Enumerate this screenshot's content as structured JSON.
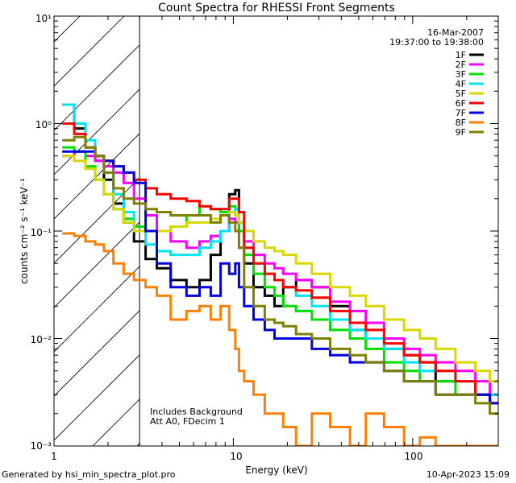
{
  "chart_data": {
    "type": "line",
    "title": "Count Spectra for RHESSI Front Segments",
    "xlabel": "Energy (keV)",
    "ylabel": "counts cm⁻² s⁻¹ keV⁻¹",
    "xscale": "log",
    "yscale": "log",
    "xlim": [
      1,
      300
    ],
    "ylim": [
      0.001,
      10
    ],
    "x_tick_labels": [
      "1",
      "10",
      "100"
    ],
    "y_tick_labels": [
      "10⁻³",
      "10⁻²",
      "10⁻¹",
      "10⁰",
      "10¹"
    ],
    "date": "16-Mar-2007",
    "time_range": "19:37:00 to 19:38:00",
    "hatched_below_keV": 3,
    "annotations": [
      "Includes Background",
      "Att A0, FDecim 1"
    ],
    "series": [
      {
        "name": "1F",
        "color": "#000000",
        "x": [
          1.2,
          1.4,
          1.6,
          1.8,
          2.0,
          2.3,
          2.6,
          3.0,
          3.5,
          4.0,
          5.0,
          6.0,
          7.0,
          8.0,
          9.0,
          10.0,
          10.5,
          11.0,
          12.0,
          14.0,
          16.0,
          18.0,
          20.0,
          25.0,
          30.0,
          40.0,
          50.0,
          60.0,
          80.0,
          100.0,
          120.0,
          150.0,
          200.0,
          250.0,
          290.0
        ],
        "y": [
          1.5,
          0.9,
          0.6,
          0.45,
          0.3,
          0.18,
          0.12,
          0.08,
          0.055,
          0.045,
          0.035,
          0.03,
          0.035,
          0.06,
          0.1,
          0.22,
          0.24,
          0.12,
          0.05,
          0.03,
          0.025,
          0.02,
          0.03,
          0.035,
          0.03,
          0.02,
          0.012,
          0.01,
          0.008,
          0.007,
          0.006,
          0.004,
          0.004,
          0.003,
          0.0025
        ]
      },
      {
        "name": "2F",
        "color": "#ff00ff",
        "x": [
          1.2,
          1.4,
          1.6,
          1.8,
          2.0,
          2.3,
          2.6,
          3.0,
          3.5,
          4.0,
          5.0,
          6.0,
          7.0,
          8.0,
          9.0,
          10.0,
          10.5,
          11.0,
          12.0,
          14.0,
          16.0,
          18.0,
          20.0,
          25.0,
          30.0,
          40.0,
          50.0,
          60.0,
          80.0,
          100.0,
          120.0,
          150.0,
          200.0,
          250.0,
          290.0
        ],
        "y": [
          0.5,
          0.55,
          0.5,
          0.45,
          0.4,
          0.35,
          0.28,
          0.2,
          0.14,
          0.1,
          0.08,
          0.07,
          0.08,
          0.09,
          0.1,
          0.13,
          0.12,
          0.1,
          0.08,
          0.06,
          0.05,
          0.045,
          0.04,
          0.035,
          0.03,
          0.022,
          0.018,
          0.014,
          0.01,
          0.008,
          0.007,
          0.006,
          0.005,
          0.004,
          0.003
        ]
      },
      {
        "name": "3F",
        "color": "#00e000",
        "x": [
          1.2,
          1.4,
          1.6,
          1.8,
          2.0,
          2.3,
          2.6,
          3.0,
          3.5,
          4.0,
          5.0,
          6.0,
          7.0,
          8.0,
          9.0,
          10.0,
          10.5,
          11.0,
          12.0,
          14.0,
          16.0,
          18.0,
          20.0,
          25.0,
          30.0,
          40.0,
          50.0,
          60.0,
          80.0,
          100.0,
          120.0,
          150.0,
          200.0,
          250.0,
          290.0
        ],
        "y": [
          0.6,
          0.55,
          0.4,
          0.3,
          0.22,
          0.16,
          0.13,
          0.11,
          0.1,
          0.1,
          0.11,
          0.14,
          0.17,
          0.16,
          0.15,
          0.17,
          0.14,
          0.1,
          0.06,
          0.04,
          0.03,
          0.025,
          0.02,
          0.018,
          0.015,
          0.012,
          0.01,
          0.008,
          0.006,
          0.005,
          0.004,
          0.004,
          0.003,
          0.003,
          0.0025
        ]
      },
      {
        "name": "4F",
        "color": "#00e5ee",
        "x": [
          1.2,
          1.4,
          1.6,
          1.8,
          2.0,
          2.3,
          2.6,
          3.0,
          3.5,
          4.0,
          5.0,
          6.0,
          7.0,
          8.0,
          9.0,
          10.0,
          10.5,
          11.0,
          12.0,
          14.0,
          16.0,
          18.0,
          20.0,
          25.0,
          30.0,
          40.0,
          50.0,
          60.0,
          80.0,
          100.0,
          120.0,
          150.0,
          200.0,
          250.0,
          290.0
        ],
        "y": [
          1.5,
          1.0,
          0.7,
          0.5,
          0.35,
          0.22,
          0.15,
          0.1,
          0.075,
          0.065,
          0.06,
          0.06,
          0.07,
          0.08,
          0.1,
          0.15,
          0.16,
          0.12,
          0.07,
          0.05,
          0.04,
          0.035,
          0.03,
          0.025,
          0.02,
          0.015,
          0.012,
          0.01,
          0.008,
          0.006,
          0.005,
          0.005,
          0.004,
          0.003,
          0.003
        ]
      },
      {
        "name": "5F",
        "color": "#d8d800",
        "x": [
          1.2,
          1.4,
          1.6,
          1.8,
          2.0,
          2.3,
          2.6,
          3.0,
          3.5,
          4.0,
          5.0,
          6.0,
          7.0,
          8.0,
          9.0,
          10.0,
          10.5,
          11.0,
          12.0,
          14.0,
          16.0,
          18.0,
          20.0,
          25.0,
          30.0,
          40.0,
          50.0,
          60.0,
          80.0,
          100.0,
          120.0,
          150.0,
          200.0,
          250.0,
          290.0
        ],
        "y": [
          0.5,
          0.45,
          0.38,
          0.3,
          0.22,
          0.16,
          0.12,
          0.1,
          0.1,
          0.1,
          0.11,
          0.12,
          0.12,
          0.13,
          0.14,
          0.15,
          0.14,
          0.12,
          0.1,
          0.08,
          0.07,
          0.065,
          0.06,
          0.05,
          0.04,
          0.03,
          0.025,
          0.02,
          0.015,
          0.012,
          0.01,
          0.008,
          0.006,
          0.005,
          0.004
        ]
      },
      {
        "name": "6F",
        "color": "#ff0000",
        "x": [
          1.2,
          1.4,
          1.6,
          1.8,
          2.0,
          2.3,
          2.6,
          3.0,
          3.5,
          4.0,
          5.0,
          6.0,
          7.0,
          8.0,
          9.0,
          10.0,
          10.5,
          11.0,
          12.0,
          14.0,
          16.0,
          18.0,
          20.0,
          25.0,
          30.0,
          40.0,
          50.0,
          60.0,
          80.0,
          100.0,
          120.0,
          150.0,
          200.0,
          250.0,
          290.0
        ],
        "y": [
          1.0,
          0.8,
          0.6,
          0.5,
          0.45,
          0.4,
          0.35,
          0.3,
          0.25,
          0.22,
          0.2,
          0.19,
          0.17,
          0.16,
          0.16,
          0.2,
          0.2,
          0.15,
          0.07,
          0.05,
          0.04,
          0.035,
          0.03,
          0.028,
          0.024,
          0.018,
          0.014,
          0.012,
          0.009,
          0.007,
          0.006,
          0.005,
          0.004,
          0.003,
          0.0025
        ]
      },
      {
        "name": "7F",
        "color": "#0000e0",
        "x": [
          1.2,
          1.4,
          1.6,
          1.8,
          2.0,
          2.3,
          2.6,
          3.0,
          3.5,
          4.0,
          5.0,
          6.0,
          7.0,
          8.0,
          9.0,
          10.0,
          10.5,
          11.0,
          12.0,
          14.0,
          16.0,
          18.0,
          20.0,
          25.0,
          30.0,
          40.0,
          50.0,
          60.0,
          80.0,
          100.0,
          120.0,
          150.0,
          200.0,
          250.0,
          290.0
        ],
        "y": [
          0.55,
          0.55,
          0.55,
          0.5,
          0.45,
          0.4,
          0.35,
          0.28,
          0.1,
          0.05,
          0.03,
          0.025,
          0.03,
          0.025,
          0.05,
          0.04,
          0.05,
          0.03,
          0.02,
          0.015,
          0.012,
          0.01,
          0.01,
          0.01,
          0.008,
          0.007,
          0.006,
          0.006,
          0.005,
          0.004,
          0.004,
          0.003,
          0.003,
          0.003,
          0.0025
        ]
      },
      {
        "name": "8F",
        "color": "#ff8000",
        "x": [
          1.2,
          1.4,
          1.6,
          1.8,
          2.0,
          2.3,
          2.6,
          3.0,
          3.5,
          4.0,
          5.0,
          6.0,
          7.0,
          8.0,
          9.0,
          10.0,
          10.5,
          11.0,
          12.0,
          14.0,
          16.0,
          18.0,
          20.0,
          25.0,
          30.0,
          40.0,
          50.0,
          60.0,
          80.0,
          100.0,
          120.0,
          150.0,
          200.0,
          250.0,
          290.0
        ],
        "y": [
          0.095,
          0.09,
          0.08,
          0.075,
          0.065,
          0.05,
          0.04,
          0.035,
          0.03,
          0.025,
          0.015,
          0.018,
          0.02,
          0.015,
          0.02,
          0.012,
          0.008,
          0.005,
          0.004,
          0.003,
          0.002,
          0.002,
          0.0015,
          0.001,
          0.002,
          0.0015,
          0.001,
          0.002,
          0.0015,
          0.001,
          0.0012,
          0.001,
          0.001,
          0.001,
          0.001
        ]
      },
      {
        "name": "9F",
        "color": "#808000",
        "x": [
          1.2,
          1.4,
          1.6,
          1.8,
          2.0,
          2.3,
          2.6,
          3.0,
          3.5,
          4.0,
          5.0,
          6.0,
          7.0,
          8.0,
          9.0,
          10.0,
          10.5,
          11.0,
          12.0,
          14.0,
          16.0,
          18.0,
          20.0,
          25.0,
          30.0,
          40.0,
          50.0,
          60.0,
          80.0,
          100.0,
          120.0,
          150.0,
          200.0,
          250.0,
          290.0
        ],
        "y": [
          0.7,
          0.75,
          0.6,
          0.5,
          0.35,
          0.25,
          0.2,
          0.18,
          0.16,
          0.15,
          0.14,
          0.14,
          0.14,
          0.12,
          0.14,
          0.12,
          0.1,
          0.07,
          0.03,
          0.02,
          0.015,
          0.014,
          0.013,
          0.011,
          0.01,
          0.008,
          0.007,
          0.006,
          0.005,
          0.004,
          0.004,
          0.003,
          0.003,
          0.0025,
          0.002
        ]
      }
    ]
  },
  "footer": {
    "generated_by": "Generated by hsi_min_spectra_plot.pro",
    "date_time": "10-Apr-2023 15:09"
  }
}
